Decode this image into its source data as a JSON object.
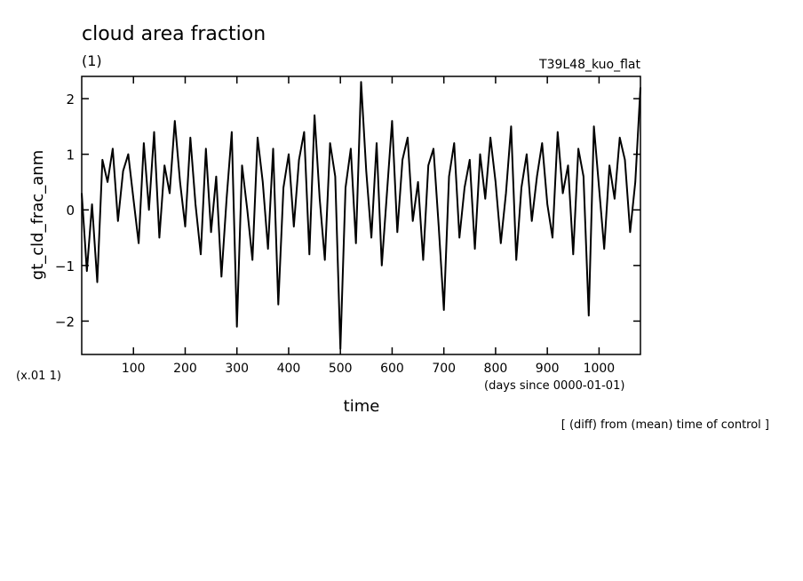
{
  "chart_data": {
    "type": "line",
    "title": "cloud area fraction",
    "subtitle": "(1)",
    "run_label": "T39L48_kuo_flat",
    "xlabel": "time",
    "x_unit": "(days since 0000-01-01)",
    "ylabel": "gt_cld_frac_anm",
    "y_scale_note": "(x.01 1)",
    "footnote": "[ (diff) from (mean) time of control ]",
    "xlim": [
      0,
      1080
    ],
    "ylim": [
      -2.6,
      2.4
    ],
    "x_ticks": [
      100,
      200,
      300,
      400,
      500,
      600,
      700,
      800,
      900,
      1000
    ],
    "y_ticks": [
      -2,
      -1,
      0,
      1,
      2
    ],
    "x_tick_labels": [
      "100",
      "200",
      "300",
      "400",
      "500",
      "600",
      "700",
      "800",
      "900",
      "1000"
    ],
    "y_tick_labels": [
      "−2",
      "−1",
      "0",
      "1",
      "2"
    ],
    "grid": false,
    "series": [
      {
        "x": [
          0,
          10,
          20,
          30,
          40,
          50,
          60,
          70,
          80,
          90,
          100,
          110,
          120,
          130,
          140,
          150,
          160,
          170,
          180,
          190,
          200,
          210,
          220,
          230,
          240,
          250,
          260,
          270,
          280,
          290,
          300,
          310,
          320,
          330,
          340,
          350,
          360,
          370,
          380,
          390,
          400,
          410,
          420,
          430,
          440,
          450,
          460,
          470,
          480,
          490,
          500,
          510,
          520,
          530,
          540,
          550,
          560,
          570,
          580,
          590,
          600,
          610,
          620,
          630,
          640,
          650,
          660,
          670,
          680,
          690,
          700,
          710,
          720,
          730,
          740,
          750,
          760,
          770,
          780,
          790,
          800,
          810,
          820,
          830,
          840,
          850,
          860,
          870,
          880,
          890,
          900,
          910,
          920,
          930,
          940,
          950,
          960,
          970,
          980,
          990,
          1000,
          1010,
          1020,
          1030,
          1040,
          1050,
          1060,
          1070,
          1080
        ],
        "values": [
          0.3,
          -1.1,
          0.1,
          -1.3,
          0.9,
          0.5,
          1.1,
          -0.2,
          0.7,
          1.0,
          0.2,
          -0.6,
          1.2,
          0.0,
          1.4,
          -0.5,
          0.8,
          0.3,
          1.6,
          0.5,
          -0.3,
          1.3,
          0.1,
          -0.8,
          1.1,
          -0.4,
          0.6,
          -1.2,
          0.2,
          1.4,
          -2.1,
          0.8,
          0.0,
          -0.9,
          1.3,
          0.5,
          -0.7,
          1.1,
          -1.7,
          0.4,
          1.0,
          -0.3,
          0.9,
          1.4,
          -0.8,
          1.7,
          0.2,
          -0.9,
          1.2,
          0.6,
          -2.5,
          0.4,
          1.1,
          -0.6,
          2.3,
          0.7,
          -0.5,
          1.2,
          -1.0,
          0.3,
          1.6,
          -0.4,
          0.9,
          1.3,
          -0.2,
          0.5,
          -0.9,
          0.8,
          1.1,
          -0.3,
          -1.8,
          0.6,
          1.2,
          -0.5,
          0.4,
          0.9,
          -0.7,
          1.0,
          0.2,
          1.3,
          0.5,
          -0.6,
          0.3,
          1.5,
          -0.9,
          0.4,
          1.0,
          -0.2,
          0.6,
          1.2,
          0.1,
          -0.5,
          1.4,
          0.3,
          0.8,
          -0.8,
          1.1,
          0.6,
          -1.9,
          1.5,
          0.4,
          -0.7,
          0.8,
          0.2,
          1.3,
          0.9,
          -0.4,
          0.5,
          2.2
        ]
      }
    ]
  }
}
